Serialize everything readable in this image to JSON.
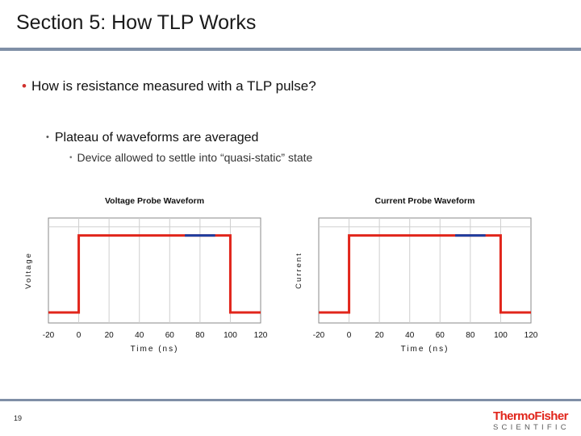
{
  "slide": {
    "title": "Section 5: How TLP Works",
    "bullet1": "How is resistance measured with a TLP pulse?",
    "bullet2": "Plateau of waveforms are averaged",
    "bullet3": "Device allowed to settle into “quasi-static” state",
    "bullet1_marker": "•",
    "bullet2_marker": "•",
    "bullet3_marker": "•",
    "page_number": "19"
  },
  "logo": {
    "line1": "ThermoFisher",
    "line2": "SCIENTIFIC"
  },
  "colors": {
    "accent": "#d0312d",
    "waveform": "#e1251b",
    "plateau": "#1f3fa0",
    "rule": "#7f8fa6"
  },
  "chart_data": [
    {
      "type": "line",
      "title": "Voltage Probe Waveform",
      "xlabel": "Time (ns)",
      "ylabel": "Voltage",
      "xlim": [
        -20,
        120
      ],
      "ylim": [
        0,
        1.2
      ],
      "x_ticks": [
        "-20",
        "0",
        "20",
        "40",
        "60",
        "80",
        "100",
        "120"
      ],
      "grid": true,
      "series": [
        {
          "role": "waveform",
          "x": [
            -20,
            0,
            0,
            100,
            100,
            120
          ],
          "y": [
            0.12,
            0.12,
            1.0,
            1.0,
            0.12,
            0.12
          ]
        },
        {
          "role": "plateau",
          "x": [
            70,
            90
          ],
          "y": [
            1.0,
            1.0
          ]
        }
      ]
    },
    {
      "type": "line",
      "title": "Current Probe Waveform",
      "xlabel": "Time (ns)",
      "ylabel": "Current",
      "xlim": [
        -20,
        120
      ],
      "ylim": [
        0,
        1.2
      ],
      "x_ticks": [
        "-20",
        "0",
        "20",
        "40",
        "60",
        "80",
        "100",
        "120"
      ],
      "grid": true,
      "series": [
        {
          "role": "waveform",
          "x": [
            -20,
            0,
            0,
            100,
            100,
            120
          ],
          "y": [
            0.12,
            0.12,
            1.0,
            1.0,
            0.12,
            0.12
          ]
        },
        {
          "role": "plateau",
          "x": [
            70,
            90
          ],
          "y": [
            1.0,
            1.0
          ]
        }
      ]
    }
  ]
}
